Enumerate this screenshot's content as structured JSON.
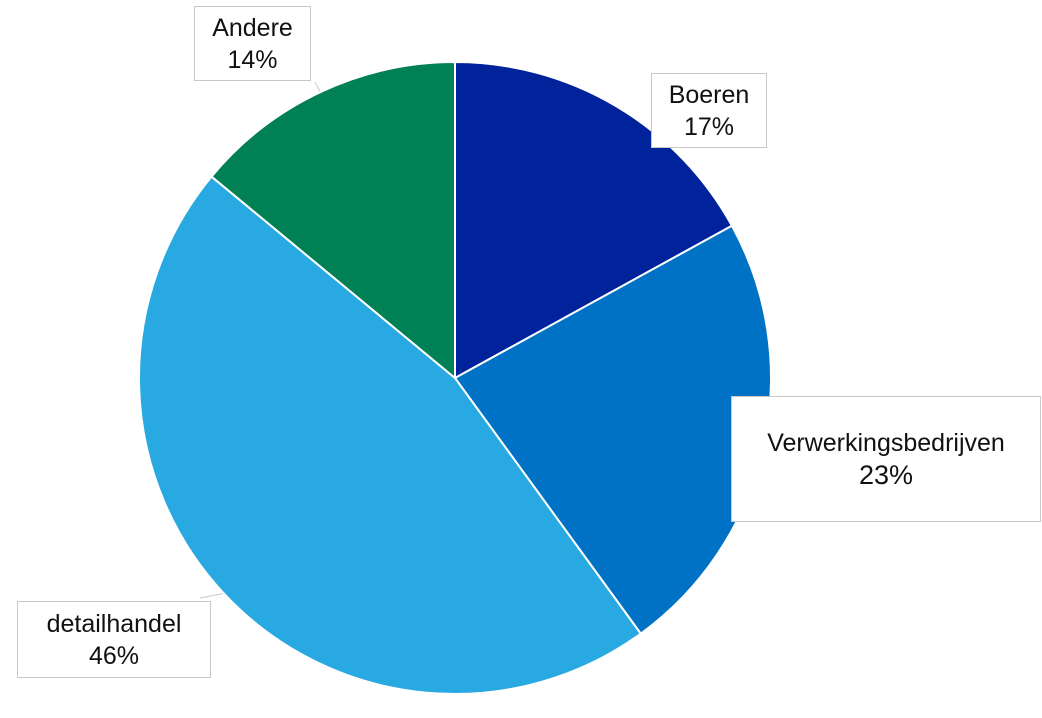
{
  "chart_data": {
    "type": "pie",
    "slices": [
      {
        "label": "Boeren",
        "value": 17,
        "value_label": "17%",
        "color": "#00239c"
      },
      {
        "label": "Verwerkingsbedrijven",
        "value": 23,
        "value_label": "23%",
        "color": "#0072c6"
      },
      {
        "label": "detailhandel",
        "value": 46,
        "value_label": "46%",
        "color": "#29a9e1"
      },
      {
        "label": "Andere",
        "value": 14,
        "value_label": "14%",
        "color": "#008055"
      }
    ],
    "start": "12 o'clock",
    "direction": "clockwise",
    "legend": "none (callout labels)"
  }
}
